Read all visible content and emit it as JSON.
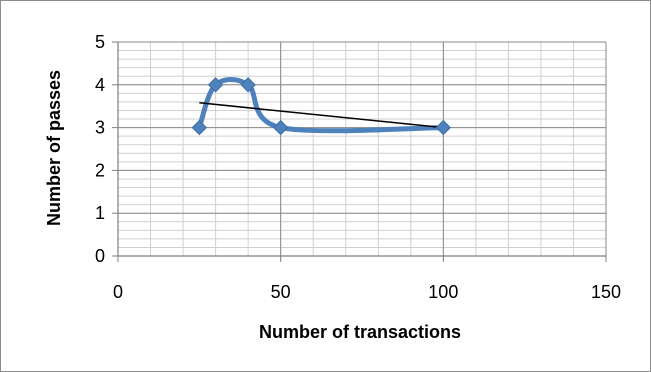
{
  "chart_data": {
    "type": "scatter",
    "title": "",
    "xlabel": "Number of transactions",
    "ylabel": "Number of passes",
    "xlim": [
      0,
      150
    ],
    "ylim": [
      0,
      5
    ],
    "x_ticks": [
      0,
      50,
      100,
      150
    ],
    "y_ticks": [
      0,
      1,
      2,
      3,
      4,
      5
    ],
    "x_minor_step": 10,
    "y_minor_step": 0.2,
    "grid": true,
    "legend": "none",
    "series": [
      {
        "x": [
          25,
          30,
          40,
          50,
          100
        ],
        "y": [
          3,
          4,
          4,
          3,
          3
        ],
        "line": "smooth",
        "marker": "diamond",
        "color": "#4f81bd"
      }
    ],
    "trendline": {
      "type": "linear",
      "x": [
        25,
        100
      ],
      "y": [
        3.58,
        3.0
      ],
      "color": "#000000"
    }
  }
}
